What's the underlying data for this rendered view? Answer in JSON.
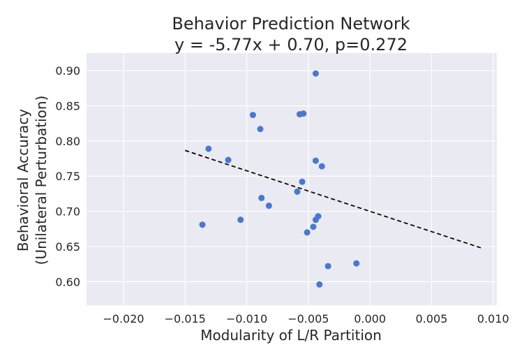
{
  "chart_data": {
    "type": "scatter",
    "title": "Behavior Prediction Network",
    "subtitle": "y = -5.77x + 0.70, p=0.272",
    "xlabel": "Modularity of L/R Partition",
    "ylabel": "Behavioral Accuracy",
    "ylabel2": "(Unilateral Perturbation)",
    "xlim": [
      -0.023,
      0.0103
    ],
    "ylim": [
      0.5665,
      0.925
    ],
    "xticks": [
      -0.02,
      -0.015,
      -0.01,
      -0.005,
      0.0,
      0.005,
      0.01
    ],
    "xtick_labels": [
      "−0.020",
      "−0.015",
      "−0.010",
      "−0.005",
      "0.000",
      "0.005",
      "0.010"
    ],
    "yticks": [
      0.6,
      0.65,
      0.7,
      0.75,
      0.8,
      0.85,
      0.9
    ],
    "ytick_labels": [
      "0.60",
      "0.65",
      "0.70",
      "0.75",
      "0.80",
      "0.85",
      "0.90"
    ],
    "grid": true,
    "point_color": "#4878cf",
    "background_color": "#eaeaf2",
    "points": [
      {
        "x": -0.0044,
        "y": 0.896
      },
      {
        "x": -0.0095,
        "y": 0.837
      },
      {
        "x": -0.0057,
        "y": 0.838
      },
      {
        "x": -0.0054,
        "y": 0.839
      },
      {
        "x": -0.0089,
        "y": 0.817
      },
      {
        "x": -0.0131,
        "y": 0.789
      },
      {
        "x": -0.0115,
        "y": 0.773
      },
      {
        "x": -0.0044,
        "y": 0.772
      },
      {
        "x": -0.0039,
        "y": 0.764
      },
      {
        "x": -0.0055,
        "y": 0.742
      },
      {
        "x": -0.0059,
        "y": 0.728
      },
      {
        "x": -0.0088,
        "y": 0.719
      },
      {
        "x": -0.0082,
        "y": 0.708
      },
      {
        "x": -0.0136,
        "y": 0.681
      },
      {
        "x": -0.0105,
        "y": 0.688
      },
      {
        "x": -0.0042,
        "y": 0.693
      },
      {
        "x": -0.0044,
        "y": 0.688
      },
      {
        "x": -0.0046,
        "y": 0.678
      },
      {
        "x": -0.0051,
        "y": 0.67
      },
      {
        "x": -0.0011,
        "y": 0.626
      },
      {
        "x": -0.0034,
        "y": 0.622
      },
      {
        "x": -0.0041,
        "y": 0.596
      }
    ],
    "fit_line": {
      "slope": -5.77,
      "intercept": 0.7,
      "x": [
        -0.015,
        0.009
      ],
      "style": "dashed",
      "color": "#000000"
    }
  }
}
